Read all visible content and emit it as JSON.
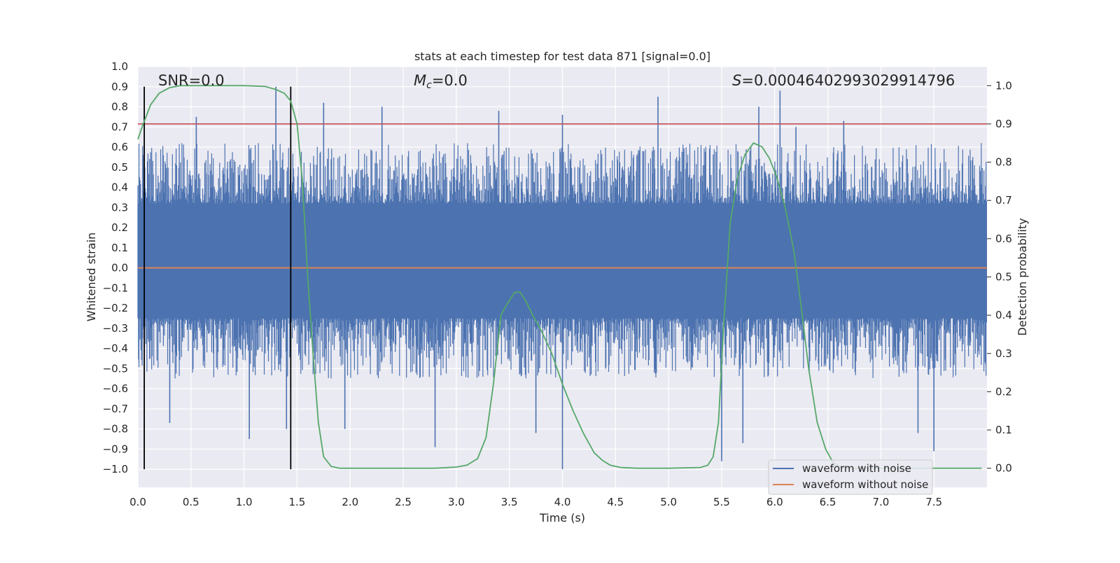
{
  "chart_data": {
    "type": "line",
    "title": "stats at each timestep for test data 871 [signal=0.0]",
    "xlabel": "Time (s)",
    "ylabel": "Whitened strain",
    "y2label": "Detection probability",
    "xlim": [
      0.0,
      8.0
    ],
    "ylim": [
      -1.09,
      1.0
    ],
    "y2lim": [
      -0.05,
      1.05
    ],
    "x_ticks": [
      "0.0",
      "0.5",
      "1.0",
      "1.5",
      "2.0",
      "2.5",
      "3.0",
      "3.5",
      "4.0",
      "4.5",
      "5.0",
      "5.5",
      "6.0",
      "6.5",
      "7.0",
      "7.5"
    ],
    "y_ticks": [
      "1.0",
      "0.9",
      "0.8",
      "0.7",
      "0.6",
      "0.5",
      "0.4",
      "0.3",
      "0.2",
      "0.1",
      "0.0",
      "-0.1",
      "-0.2",
      "-0.3",
      "-0.4",
      "-0.5",
      "-0.6",
      "-0.7",
      "-0.8",
      "-0.9",
      "-1.0"
    ],
    "y2_ticks": [
      "1.0",
      "0.9",
      "0.8",
      "0.7",
      "0.6",
      "0.5",
      "0.4",
      "0.3",
      "0.2",
      "0.1",
      "0.0"
    ],
    "grid": true,
    "legend_position": "bottom-right",
    "annotations": {
      "snr_prefix": "SNR",
      "snr_value": "=0.0",
      "mc_symbol": "M",
      "mc_subscript": "c",
      "mc_value": "=0.0",
      "s_symbol": "S",
      "s_value": "=0.00046402993029914796"
    },
    "colors": {
      "noise": "#4c72b0",
      "clean": "#dd8452",
      "probability": "#55a868",
      "threshold": "#c44e52",
      "markers": "#000000",
      "background": "#eaeaf2",
      "grid": "#ffffff"
    },
    "series": [
      {
        "name": "waveform with noise",
        "kind": "noise_envelope",
        "axis": "left",
        "dense_band": [
          -0.25,
          0.32
        ],
        "typical_peak_max": 0.62,
        "typical_trough_min": -0.55,
        "spikes": [
          {
            "x": 0.55,
            "y": 0.75
          },
          {
            "x": 1.3,
            "y": 0.9
          },
          {
            "x": 1.75,
            "y": 0.82
          },
          {
            "x": 2.3,
            "y": 0.8
          },
          {
            "x": 3.4,
            "y": 0.78
          },
          {
            "x": 4.0,
            "y": 0.76
          },
          {
            "x": 4.9,
            "y": 0.85
          },
          {
            "x": 5.85,
            "y": 0.8
          },
          {
            "x": 6.05,
            "y": 0.88
          },
          {
            "x": 6.2,
            "y": 0.7
          },
          {
            "x": 6.65,
            "y": 0.73
          },
          {
            "x": 0.3,
            "y": -0.77
          },
          {
            "x": 1.05,
            "y": -0.85
          },
          {
            "x": 1.4,
            "y": -0.8
          },
          {
            "x": 1.95,
            "y": -0.8
          },
          {
            "x": 2.8,
            "y": -0.89
          },
          {
            "x": 4.0,
            "y": -1.0
          },
          {
            "x": 5.5,
            "y": -0.96
          },
          {
            "x": 5.7,
            "y": -0.87
          },
          {
            "x": 7.5,
            "y": -0.91
          },
          {
            "x": 7.35,
            "y": -0.82
          },
          {
            "x": 3.75,
            "y": -0.82
          }
        ]
      },
      {
        "name": "waveform without noise",
        "kind": "line",
        "axis": "left",
        "x": [
          0.0,
          8.0
        ],
        "y": [
          0.0,
          0.0
        ]
      },
      {
        "kind": "line",
        "axis": "right",
        "x": [
          0.0,
          0.05,
          0.12,
          0.2,
          0.3,
          0.4,
          0.5,
          0.6,
          1.0,
          1.2,
          1.3,
          1.38,
          1.44,
          1.5,
          1.55,
          1.6,
          1.65,
          1.7,
          1.75,
          1.82,
          1.9,
          2.1,
          2.5,
          2.8,
          3.0,
          3.1,
          3.2,
          3.28,
          3.35,
          3.42,
          3.48,
          3.55,
          3.6,
          3.65,
          3.72,
          3.8,
          3.9,
          4.0,
          4.1,
          4.2,
          4.3,
          4.38,
          4.45,
          4.55,
          4.7,
          5.0,
          5.3,
          5.37,
          5.42,
          5.47,
          5.52,
          5.58,
          5.65,
          5.72,
          5.8,
          5.88,
          5.95,
          6.02,
          6.1,
          6.18,
          6.25,
          6.32,
          6.4,
          6.48,
          6.55,
          6.62,
          6.7,
          6.8,
          6.9,
          7.0,
          7.3,
          7.6,
          7.8,
          7.95
        ],
        "y": [
          0.86,
          0.9,
          0.95,
          0.98,
          0.995,
          1.0,
          1.0,
          1.0,
          1.0,
          0.998,
          0.99,
          0.98,
          0.96,
          0.9,
          0.75,
          0.5,
          0.3,
          0.12,
          0.03,
          0.005,
          0.0,
          0.0,
          0.0,
          0.0,
          0.003,
          0.008,
          0.025,
          0.08,
          0.22,
          0.4,
          0.43,
          0.46,
          0.46,
          0.44,
          0.4,
          0.36,
          0.3,
          0.22,
          0.15,
          0.09,
          0.04,
          0.02,
          0.008,
          0.002,
          0.0,
          0.0,
          0.002,
          0.008,
          0.03,
          0.12,
          0.38,
          0.64,
          0.76,
          0.82,
          0.85,
          0.84,
          0.81,
          0.76,
          0.68,
          0.57,
          0.42,
          0.26,
          0.12,
          0.05,
          0.015,
          0.003,
          0.0,
          0.0,
          0.0,
          0.0,
          0.0,
          0.0,
          0.0,
          0.0
        ]
      },
      {
        "kind": "hline",
        "axis": "right",
        "y": 0.9
      },
      {
        "kind": "vlines",
        "axis": "left",
        "x": [
          0.06,
          1.44
        ],
        "ymin": -1.0,
        "ymax": 0.9
      }
    ]
  }
}
